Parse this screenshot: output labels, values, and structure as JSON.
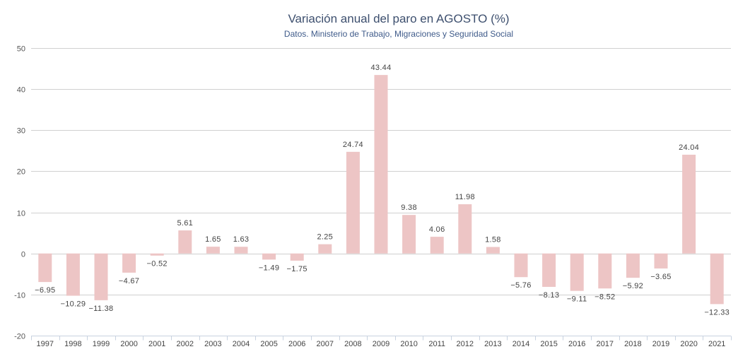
{
  "chart_data": {
    "type": "bar",
    "title": "Variación anual del paro en AGOSTO (%)",
    "subtitle": "Datos. Ministerio de Trabajo, Migraciones y Seguridad Social",
    "xlabel": "",
    "ylabel": "",
    "ylim": [
      -20,
      50
    ],
    "yticks": [
      50,
      40,
      30,
      20,
      10,
      0,
      -10,
      -20
    ],
    "grid": true,
    "legend": "none",
    "bar_color": "#edc5c5",
    "categories": [
      "1997",
      "1998",
      "1999",
      "2000",
      "2001",
      "2002",
      "2003",
      "2004",
      "2005",
      "2006",
      "2007",
      "2008",
      "2009",
      "2010",
      "2011",
      "2012",
      "2013",
      "2014",
      "2015",
      "2016",
      "2017",
      "2018",
      "2019",
      "2020",
      "2021"
    ],
    "values": [
      -6.95,
      -10.29,
      -11.38,
      -4.67,
      -0.52,
      5.61,
      1.65,
      1.63,
      -1.49,
      -1.75,
      2.25,
      24.74,
      43.44,
      9.38,
      4.06,
      11.98,
      1.58,
      -5.76,
      -8.13,
      -9.11,
      -8.52,
      -5.92,
      -3.65,
      24.04,
      -12.33
    ],
    "data_labels": [
      "−6.95",
      "−10.29",
      "−11.38",
      "−4.67",
      "−0.52",
      "5.61",
      "1.65",
      "1.63",
      "−1.49",
      "−1.75",
      "2.25",
      "24.74",
      "43.44",
      "9.38",
      "4.06",
      "11.98",
      "1.58",
      "−5.76",
      "−8.13",
      "−9.11",
      "−8.52",
      "−5.92",
      "−3.65",
      "24.04",
      "−12.33"
    ]
  }
}
